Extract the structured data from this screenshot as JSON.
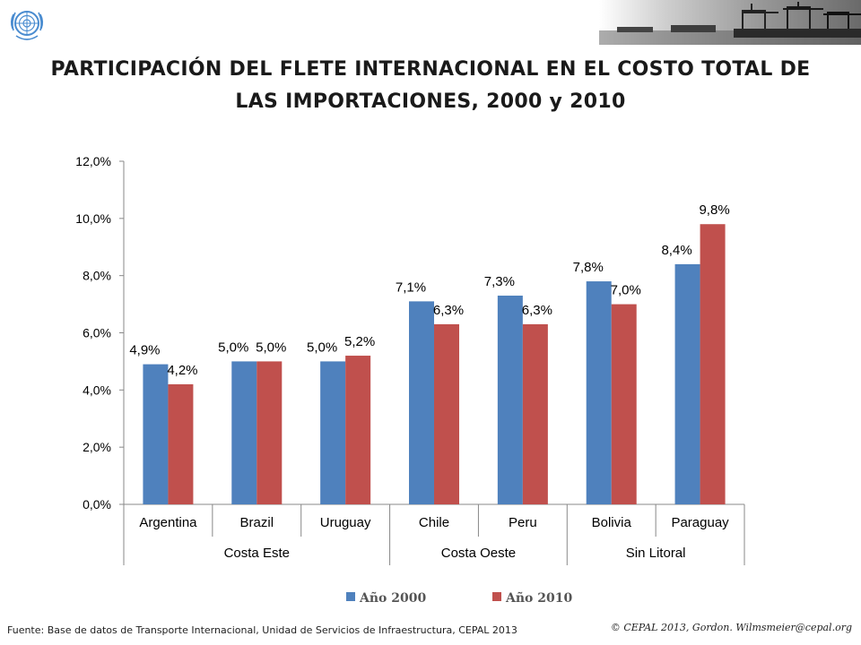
{
  "header": {
    "title_line1": "PARTICIPACIÓN DEL FLETE INTERNACIONAL EN EL COSTO TOTAL DE",
    "title_line2": "LAS IMPORTACIONES, 2000 y 2010",
    "logo_icon": "un-emblem-icon",
    "banner_image": "port-cranes-photo"
  },
  "footer": {
    "source": "Fuente: Base de datos de Transporte Internacional, Unidad de Servicios de Infraestructura, CEPAL 2013",
    "copyright": "© CEPAL 2013, Gordon. Wilmsmeier@cepal.org"
  },
  "chart_data": {
    "type": "bar",
    "title": "PARTICIPACIÓN DEL FLETE INTERNACIONAL EN EL COSTO TOTAL DE LAS IMPORTACIONES, 2000 y 2010",
    "categories": [
      "Argentina",
      "Brazil",
      "Uruguay",
      "Chile",
      "Peru",
      "Bolivia",
      "Paraguay"
    ],
    "groups": [
      {
        "label": "Costa Este",
        "categories": [
          "Argentina",
          "Brazil",
          "Uruguay"
        ]
      },
      {
        "label": "Costa Oeste",
        "categories": [
          "Chile",
          "Peru"
        ]
      },
      {
        "label": "Sin Litoral",
        "categories": [
          "Bolivia",
          "Paraguay"
        ]
      }
    ],
    "series": [
      {
        "name": "Año 2000",
        "color": "#4F81BD",
        "values": [
          4.9,
          5.0,
          5.0,
          7.1,
          7.3,
          7.8,
          8.4
        ],
        "labels": [
          "4,9%",
          "5,0%",
          "5,0%",
          "7,1%",
          "7,3%",
          "7,8%",
          "8,4%"
        ]
      },
      {
        "name": "Año 2010",
        "color": "#C0504D",
        "values": [
          4.2,
          5.0,
          5.2,
          6.3,
          6.3,
          7.0,
          9.8
        ],
        "labels": [
          "4,2%",
          "5,0%",
          "5,2%",
          "6,3%",
          "6,3%",
          "7,0%",
          "9,8%"
        ]
      }
    ],
    "ylim": [
      0,
      12
    ],
    "yticks": [
      0,
      2,
      4,
      6,
      8,
      10,
      12
    ],
    "ytick_labels": [
      "0,0%",
      "2,0%",
      "4,0%",
      "6,0%",
      "8,0%",
      "10,0%",
      "12,0%"
    ],
    "xlabel": "",
    "ylabel": "",
    "grid": false,
    "legend_position": "bottom"
  }
}
